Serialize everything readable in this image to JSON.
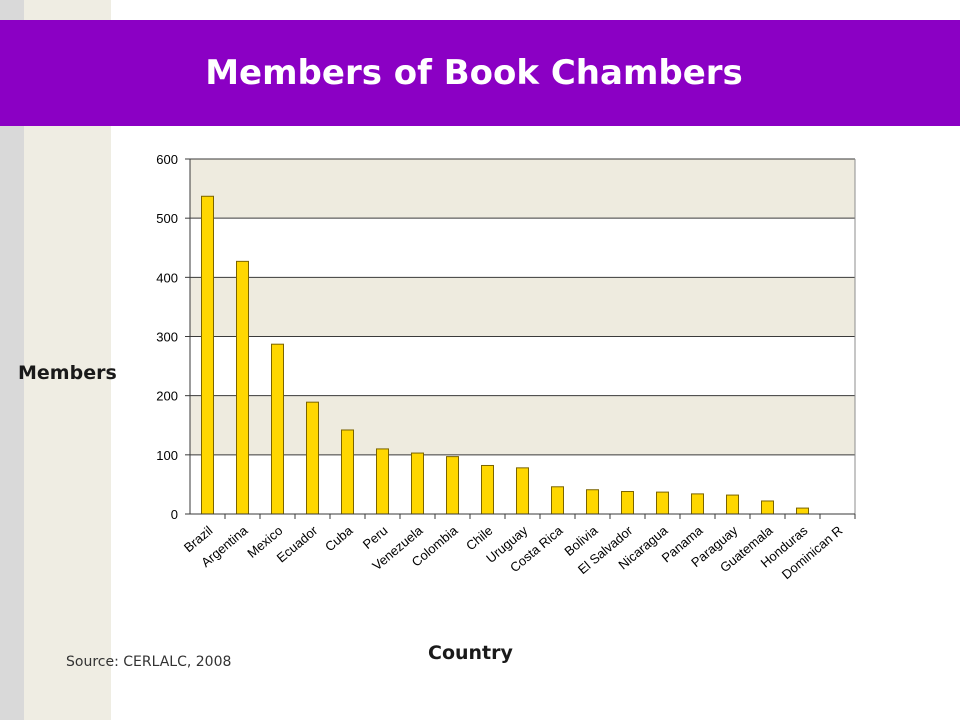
{
  "title": "Members of Book Chambers",
  "source": "Source: CERLALC, 2008",
  "colors": {
    "title_band": "#8b00c4",
    "bar_fill": "#ffd700",
    "bar_stroke": "#7a6400",
    "plot_band": "#eeebdf"
  },
  "chart_data": {
    "type": "bar",
    "title": "Members of Book Chambers",
    "xlabel": "Country",
    "ylabel": "Members",
    "categories": [
      "Brazil",
      "Argentina",
      "Mexico",
      "Ecuador",
      "Cuba",
      "Peru",
      "Venezuela",
      "Colombia",
      "Chile",
      "Uruguay",
      "Costa Rica",
      "Bolivia",
      "El Salvador",
      "Nicaragua",
      "Panama",
      "Paraguay",
      "Guatemala",
      "Honduras",
      "Dominican R"
    ],
    "values": [
      537,
      427,
      287,
      189,
      142,
      110,
      103,
      97,
      82,
      78,
      46,
      41,
      38,
      37,
      34,
      32,
      22,
      10,
      0
    ],
    "ylim": [
      0,
      600
    ],
    "yticks": [
      0,
      100,
      200,
      300,
      400,
      500,
      600
    ],
    "grid": true,
    "legend": "none"
  }
}
